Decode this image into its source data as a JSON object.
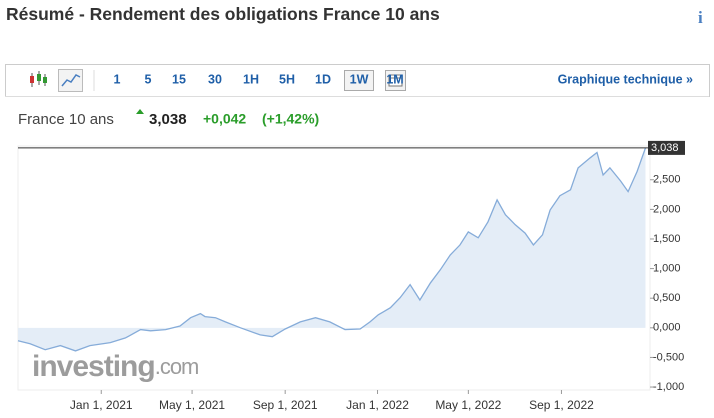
{
  "header": {
    "title": "Résumé - Rendement des obligations France 10 ans",
    "info": "i"
  },
  "toolbar": {
    "intervals": [
      "1",
      "5",
      "15",
      "30",
      "1H",
      "5H",
      "1D",
      "1W",
      "1M"
    ],
    "active": "1W",
    "link": "Graphique technique »"
  },
  "quote": {
    "name": "France 10 ans",
    "price": "3,038",
    "change": "+0,042",
    "change_pct": "(+1,42%)"
  },
  "watermark": {
    "brand": "investing",
    "suffix": ".com"
  },
  "chart_data": {
    "type": "area",
    "x": [
      "2020-09-13",
      "2020-09-29",
      "2020-10-19",
      "2020-11-08",
      "2020-11-28",
      "2020-12-17",
      "2021-01-13",
      "2021-02-02",
      "2021-02-22",
      "2021-03-07",
      "2021-03-27",
      "2021-04-15",
      "2021-04-29",
      "2021-05-12",
      "2021-05-18",
      "2021-06-01",
      "2021-06-14",
      "2021-07-04",
      "2021-07-30",
      "2021-08-15",
      "2021-09-01",
      "2021-09-21",
      "2021-10-11",
      "2021-10-30",
      "2021-11-19",
      "2021-12-09",
      "2021-12-22",
      "2022-01-02",
      "2022-01-18",
      "2022-01-31",
      "2022-02-13",
      "2022-02-26",
      "2022-03-12",
      "2022-03-25",
      "2022-04-07",
      "2022-04-20",
      "2022-05-01",
      "2022-05-14",
      "2022-05-27",
      "2022-06-08",
      "2022-06-19",
      "2022-07-02",
      "2022-07-15",
      "2022-07-26",
      "2022-08-07",
      "2022-08-17",
      "2022-08-30",
      "2022-09-13",
      "2022-09-23",
      "2022-10-09",
      "2022-10-18",
      "2022-10-26",
      "2022-11-04",
      "2022-11-18",
      "2022-11-28",
      "2022-12-10",
      "2022-12-21"
    ],
    "series": [
      {
        "name": "France 10 ans",
        "color": "#86acd9",
        "fill": "#e4edf7",
        "values": [
          -0.22,
          -0.27,
          -0.37,
          -0.3,
          -0.39,
          -0.3,
          -0.25,
          -0.17,
          -0.03,
          -0.05,
          -0.03,
          0.03,
          0.17,
          0.24,
          0.19,
          0.17,
          0.1,
          0,
          -0.12,
          -0.15,
          -0.02,
          0.1,
          0.17,
          0.1,
          -0.03,
          -0.02,
          0.1,
          0.22,
          0.34,
          0.51,
          0.73,
          0.47,
          0.76,
          0.98,
          1.23,
          1.4,
          1.62,
          1.52,
          1.79,
          2.16,
          1.91,
          1.74,
          1.6,
          1.4,
          1.57,
          1.99,
          2.23,
          2.33,
          2.7,
          2.87,
          2.96,
          2.58,
          2.7,
          2.48,
          2.3,
          2.64,
          3.038
        ]
      }
    ],
    "current": {
      "value": 3.038,
      "label": "3,038"
    },
    "xlim": [
      "2020-09-13",
      "2022-12-27"
    ],
    "xticks": [
      {
        "value": "2021-01-01",
        "label": "Jan 1, 2021"
      },
      {
        "value": "2021-05-01",
        "label": "May 1, 2021"
      },
      {
        "value": "2021-09-01",
        "label": "Sep 1, 2021"
      },
      {
        "value": "2022-01-01",
        "label": "Jan 1, 2022"
      },
      {
        "value": "2022-05-01",
        "label": "May 1, 2022"
      },
      {
        "value": "2022-09-01",
        "label": "Sep 1, 2022"
      }
    ],
    "ylim": [
      -1.05,
      3.07
    ],
    "yticks": [
      {
        "value": -1,
        "label": "-1,000"
      },
      {
        "value": -0.5,
        "label": "-0,500"
      },
      {
        "value": 0,
        "label": "0,000"
      },
      {
        "value": 0.5,
        "label": "0,500"
      },
      {
        "value": 1,
        "label": "1,000"
      },
      {
        "value": 1.5,
        "label": "1,500"
      },
      {
        "value": 2,
        "label": "2,000"
      },
      {
        "value": 2.5,
        "label": "2,500"
      }
    ]
  }
}
